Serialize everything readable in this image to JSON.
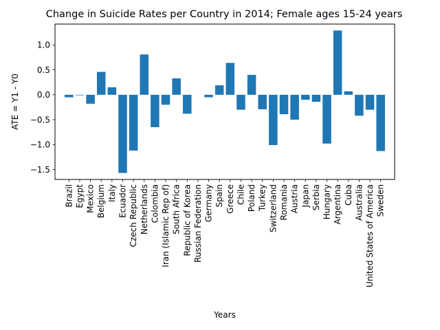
{
  "chart_data": {
    "type": "bar",
    "title": "Change in Suicide Rates per Country in 2014; Female ages 15-24 years",
    "xlabel": "Years",
    "ylabel": "ATE = Y1 - Y0",
    "ylim": [
      -1.7,
      1.42
    ],
    "yticks": [
      -1.5,
      -1.0,
      -0.5,
      0.0,
      0.5,
      1.0
    ],
    "ytick_labels": [
      "−1.5",
      "−1.0",
      "−0.5",
      "0.0",
      "0.5",
      "1.0"
    ],
    "bar_color": "#1f77b4",
    "grid": false,
    "categories": [
      "Brazil",
      "Egypt",
      "Mexico",
      "Belgium",
      "Italy",
      "Ecuador",
      "Czech Republic",
      "Netherlands",
      "Colombia",
      "Iran (Islamic Rep of)",
      "South Africa",
      "Republic of Korea",
      "Russian Federation",
      "Germany",
      "Spain",
      "Greece",
      "Chile",
      "Poland",
      "Turkey",
      "Switzerland",
      "Romania",
      "Austria",
      "Japan",
      "Serbia",
      "Hungary",
      "Argentina",
      "Cuba",
      "Australia",
      "United States of America",
      "Sweden"
    ],
    "values": [
      -0.05,
      -0.01,
      -0.18,
      0.46,
      0.15,
      -1.57,
      -1.12,
      0.81,
      -0.65,
      -0.2,
      0.33,
      -0.38,
      0.0,
      -0.05,
      0.19,
      0.64,
      -0.3,
      0.4,
      -0.29,
      -1.01,
      -0.39,
      -0.5,
      -0.1,
      -0.14,
      -0.98,
      1.29,
      0.07,
      -0.42,
      -0.3,
      -1.13
    ]
  }
}
